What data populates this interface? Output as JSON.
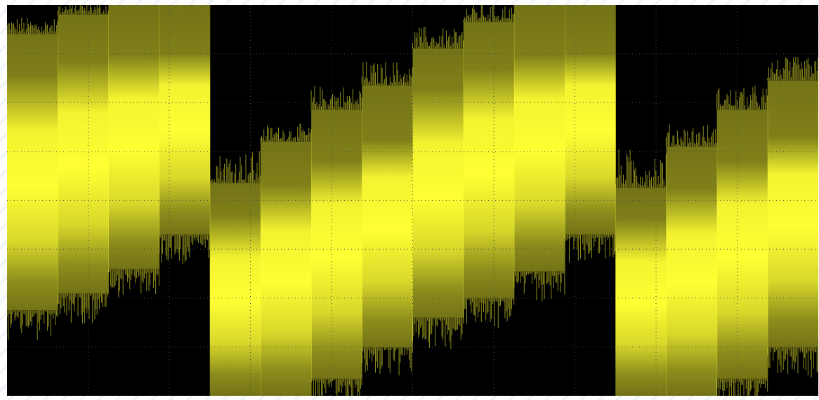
{
  "chart_data": {
    "type": "area",
    "title": "",
    "xlabel": "",
    "ylabel": "",
    "grid": true,
    "grid_divisions": {
      "x": 10,
      "y": 8
    },
    "trace_color": "#ffff33",
    "background_color": "#000000",
    "grid_color": "#4a4a4a",
    "segments": [
      {
        "index": 1,
        "band_bottom": 1.75,
        "band_top": 7.4,
        "peak": 7.7
      },
      {
        "index": 2,
        "band_bottom": 2.1,
        "band_top": 7.8,
        "peak": 8.0
      },
      {
        "index": 3,
        "band_bottom": 2.6,
        "band_top": 8.0,
        "peak": 8.0
      },
      {
        "index": 4,
        "band_bottom": 3.3,
        "band_top": 8.0,
        "peak": 8.0
      },
      {
        "index": 5,
        "band_bottom": 0.0,
        "band_top": 4.35,
        "peak": 5.0
      },
      {
        "index": 6,
        "band_bottom": 0.0,
        "band_top": 5.2,
        "peak": 5.5
      },
      {
        "index": 7,
        "band_bottom": 0.35,
        "band_top": 5.85,
        "peak": 6.3
      },
      {
        "index": 8,
        "band_bottom": 1.0,
        "band_top": 6.35,
        "peak": 6.8
      },
      {
        "index": 9,
        "band_bottom": 1.6,
        "band_top": 7.1,
        "peak": 7.5
      },
      {
        "index": 10,
        "band_bottom": 2.0,
        "band_top": 7.65,
        "peak": 8.0
      },
      {
        "index": 11,
        "band_bottom": 2.55,
        "band_top": 8.0,
        "peak": 8.0
      },
      {
        "index": 12,
        "band_bottom": 3.3,
        "band_top": 8.0,
        "peak": 8.0
      },
      {
        "index": 13,
        "band_bottom": 0.0,
        "band_top": 4.25,
        "peak": 5.0
      },
      {
        "index": 14,
        "band_bottom": 0.0,
        "band_top": 5.1,
        "peak": 5.5
      },
      {
        "index": 15,
        "band_bottom": 0.35,
        "band_top": 5.85,
        "peak": 6.3
      },
      {
        "index": 16,
        "band_bottom": 1.0,
        "band_top": 6.45,
        "peak": 6.9
      }
    ],
    "ylim": [
      0,
      8
    ],
    "xlim": [
      0,
      16
    ]
  }
}
